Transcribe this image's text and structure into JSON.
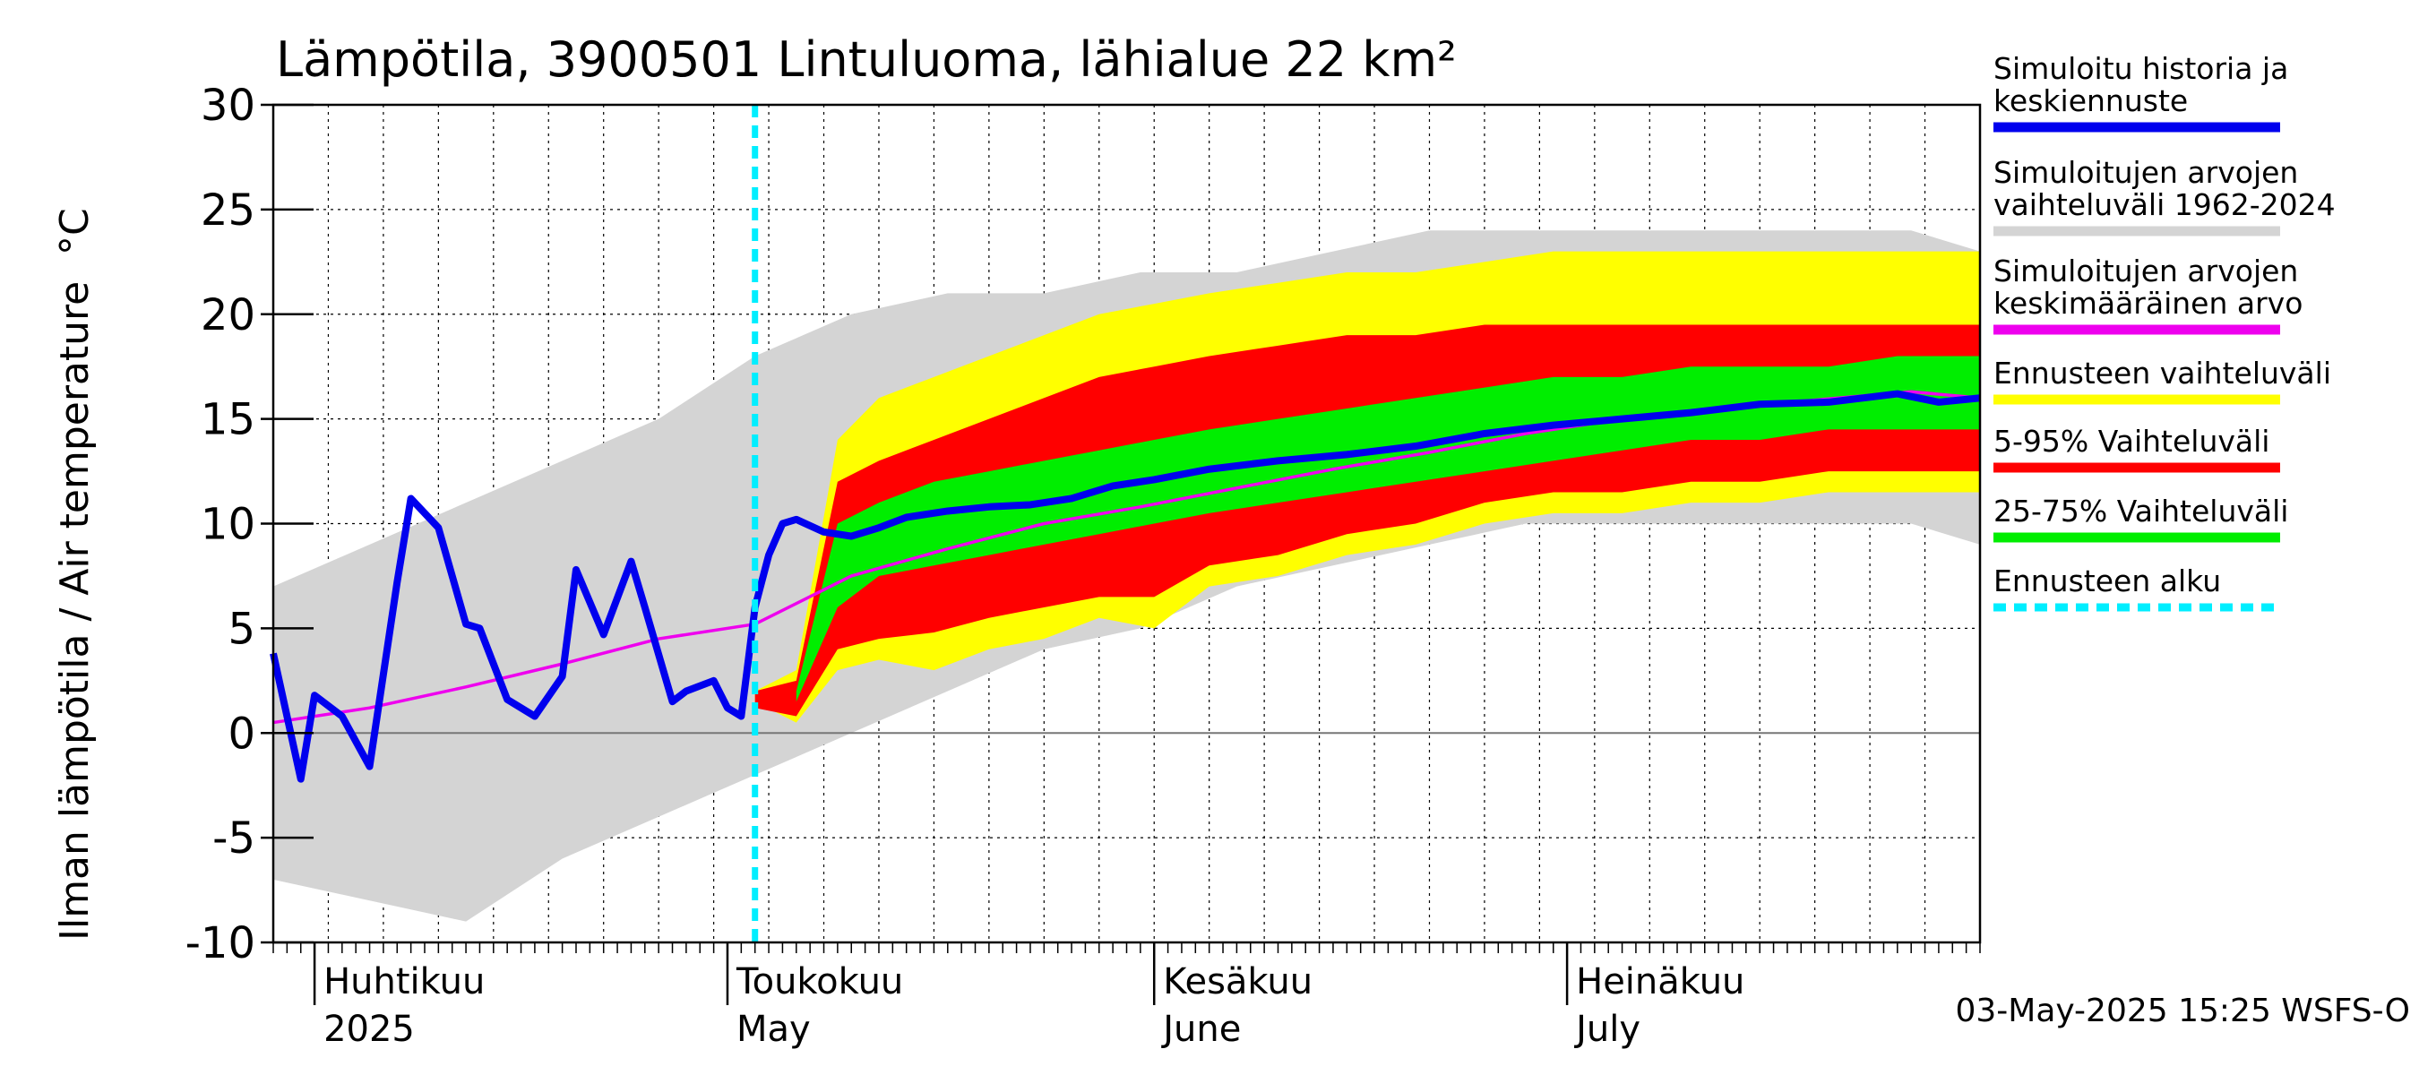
{
  "chart_data": {
    "type": "area",
    "title": "Lämpötila, 3900501 Lintuluoma, lähialue 22 km²",
    "ylabel": "Ilman lämpötila / Air temperature",
    "yunit": "°C",
    "ylim": [
      -10,
      30
    ],
    "yticks": [
      -10,
      -5,
      0,
      5,
      10,
      15,
      20,
      25,
      30
    ],
    "ytick_labels": [
      "-10",
      "-5",
      "0",
      "5",
      "10",
      "15",
      "20",
      "25",
      "30"
    ],
    "xlim": [
      "2025-03-29",
      "2025-07-31"
    ],
    "month_labels": [
      {
        "fi": "Huhtikuu",
        "en": "2025",
        "date": "2025-04-01"
      },
      {
        "fi": "Toukokuu",
        "en": "May",
        "date": "2025-05-01"
      },
      {
        "fi": "Kesäkuu",
        "en": "June",
        "date": "2025-06-01"
      },
      {
        "fi": "Heinäkuu",
        "en": "July",
        "date": "2025-07-01"
      }
    ],
    "forecast_start": "2025-05-03",
    "footer": "03-May-2025 15:25 WSFS-O",
    "grid": true,
    "legend_position": "right",
    "legend": [
      {
        "label": "Simuloitu historia ja keskiennuste",
        "color": "#0000ee",
        "style": "solid"
      },
      {
        "label": "Simuloitujen arvojen vaihteluväli 1962-2024",
        "color": "#d4d4d4",
        "style": "solid"
      },
      {
        "label": "Simuloitujen arvojen keskimääräinen arvo",
        "color": "#ee00ee",
        "style": "solid"
      },
      {
        "label": "Ennusteen vaihteluväli",
        "color": "#ffff00",
        "style": "solid"
      },
      {
        "label": "5-95% Vaihteluväli",
        "color": "#ff0000",
        "style": "solid"
      },
      {
        "label": "25-75% Vaihteluväli",
        "color": "#00ee00",
        "style": "solid"
      },
      {
        "label": "Ennusteen alku",
        "color": "#00eeff",
        "style": "dashed"
      }
    ],
    "series": [
      {
        "name": "Simuloitujen arvojen vaihteluväli 1962-2024",
        "kind": "band",
        "color": "#d4d4d4",
        "x": [
          "2025-03-29",
          "2025-04-05",
          "2025-04-12",
          "2025-04-19",
          "2025-04-26",
          "2025-05-03",
          "2025-05-10",
          "2025-05-17",
          "2025-05-24",
          "2025-05-31",
          "2025-06-07",
          "2025-06-14",
          "2025-06-21",
          "2025-06-28",
          "2025-07-05",
          "2025-07-12",
          "2025-07-19",
          "2025-07-26",
          "2025-07-31"
        ],
        "lower": [
          -7,
          -8,
          -9,
          -6,
          -4,
          -2,
          0,
          2,
          4,
          5,
          7,
          8,
          9,
          10,
          10,
          10,
          10,
          10,
          9
        ],
        "upper": [
          7,
          9,
          11,
          13,
          15,
          18,
          20,
          21,
          21,
          22,
          22,
          23,
          24,
          24,
          24,
          24,
          24,
          24,
          23
        ]
      },
      {
        "name": "Simuloitujen arvojen keskimääräinen arvo",
        "kind": "line",
        "color": "#ee00ee",
        "x": [
          "2025-03-29",
          "2025-04-05",
          "2025-04-12",
          "2025-04-19",
          "2025-04-26",
          "2025-05-03",
          "2025-05-10",
          "2025-05-17",
          "2025-05-24",
          "2025-05-31",
          "2025-06-07",
          "2025-06-14",
          "2025-06-21",
          "2025-06-28",
          "2025-07-05",
          "2025-07-12",
          "2025-07-19",
          "2025-07-26",
          "2025-07-31"
        ],
        "y": [
          0.5,
          1.2,
          2.2,
          3.3,
          4.5,
          5.2,
          7.5,
          8.8,
          10,
          10.8,
          11.7,
          12.6,
          13.4,
          14.3,
          15,
          15.5,
          15.9,
          16.3,
          16
        ]
      },
      {
        "name": "Ennusteen vaihteluväli",
        "kind": "band",
        "color": "#ffff00",
        "x": [
          "2025-05-03",
          "2025-05-06",
          "2025-05-09",
          "2025-05-12",
          "2025-05-16",
          "2025-05-20",
          "2025-05-24",
          "2025-05-28",
          "2025-06-01",
          "2025-06-05",
          "2025-06-10",
          "2025-06-15",
          "2025-06-20",
          "2025-06-25",
          "2025-06-30",
          "2025-07-05",
          "2025-07-10",
          "2025-07-15",
          "2025-07-20",
          "2025-07-25",
          "2025-07-31"
        ],
        "lower": [
          1.5,
          0.5,
          3,
          3.5,
          3,
          4,
          4.5,
          5.5,
          5,
          7,
          7.5,
          8.5,
          9,
          10,
          10.5,
          10.5,
          11,
          11,
          11.5,
          11.5,
          11.5
        ],
        "upper": [
          2,
          3,
          14,
          16,
          17,
          18,
          19,
          20,
          20.5,
          21,
          21.5,
          22,
          22,
          22.5,
          23,
          23,
          23,
          23,
          23,
          23,
          23
        ]
      },
      {
        "name": "5-95% Vaihteluväli",
        "kind": "band",
        "color": "#ff0000",
        "x": [
          "2025-05-03",
          "2025-05-06",
          "2025-05-09",
          "2025-05-12",
          "2025-05-16",
          "2025-05-20",
          "2025-05-24",
          "2025-05-28",
          "2025-06-01",
          "2025-06-05",
          "2025-06-10",
          "2025-06-15",
          "2025-06-20",
          "2025-06-25",
          "2025-06-30",
          "2025-07-05",
          "2025-07-10",
          "2025-07-15",
          "2025-07-20",
          "2025-07-25",
          "2025-07-31"
        ],
        "lower": [
          1.2,
          0.8,
          4,
          4.5,
          4.8,
          5.5,
          6,
          6.5,
          6.5,
          8,
          8.5,
          9.5,
          10,
          11,
          11.5,
          11.5,
          12,
          12,
          12.5,
          12.5,
          12.5
        ],
        "upper": [
          2,
          2.5,
          12,
          13,
          14,
          15,
          16,
          17,
          17.5,
          18,
          18.5,
          19,
          19,
          19.5,
          19.5,
          19.5,
          19.5,
          19.5,
          19.5,
          19.5,
          19.5
        ]
      },
      {
        "name": "25-75% Vaihteluväli",
        "kind": "band",
        "color": "#00ee00",
        "x": [
          "2025-05-06",
          "2025-05-09",
          "2025-05-12",
          "2025-05-16",
          "2025-05-20",
          "2025-05-24",
          "2025-05-28",
          "2025-06-01",
          "2025-06-05",
          "2025-06-10",
          "2025-06-15",
          "2025-06-20",
          "2025-06-25",
          "2025-06-30",
          "2025-07-05",
          "2025-07-10",
          "2025-07-15",
          "2025-07-20",
          "2025-07-25",
          "2025-07-31"
        ],
        "lower": [
          1.5,
          6,
          7.5,
          8,
          8.5,
          9,
          9.5,
          10,
          10.5,
          11,
          11.5,
          12,
          12.5,
          13,
          13.5,
          14,
          14,
          14.5,
          14.5,
          14.5
        ],
        "upper": [
          2,
          10,
          11,
          12,
          12.5,
          13,
          13.5,
          14,
          14.5,
          15,
          15.5,
          16,
          16.5,
          17,
          17,
          17.5,
          17.5,
          17.5,
          18,
          18
        ]
      },
      {
        "name": "Simuloitu historia ja keskiennuste",
        "kind": "line",
        "color": "#0000ee",
        "x": [
          "2025-03-29",
          "2025-03-31",
          "2025-04-01",
          "2025-04-03",
          "2025-04-05",
          "2025-04-07",
          "2025-04-08",
          "2025-04-10",
          "2025-04-12",
          "2025-04-13",
          "2025-04-15",
          "2025-04-17",
          "2025-04-19",
          "2025-04-20",
          "2025-04-22",
          "2025-04-24",
          "2025-04-25",
          "2025-04-27",
          "2025-04-28",
          "2025-04-30",
          "2025-05-01",
          "2025-05-02",
          "2025-05-03",
          "2025-05-04",
          "2025-05-05",
          "2025-05-06",
          "2025-05-08",
          "2025-05-10",
          "2025-05-12",
          "2025-05-14",
          "2025-05-17",
          "2025-05-20",
          "2025-05-23",
          "2025-05-26",
          "2025-05-29",
          "2025-06-01",
          "2025-06-05",
          "2025-06-10",
          "2025-06-15",
          "2025-06-20",
          "2025-06-25",
          "2025-06-30",
          "2025-07-05",
          "2025-07-10",
          "2025-07-15",
          "2025-07-20",
          "2025-07-25",
          "2025-07-28",
          "2025-07-31"
        ],
        "y": [
          3.8,
          -2.2,
          1.8,
          0.8,
          -1.6,
          7.2,
          11.2,
          9.8,
          5.2,
          5,
          1.6,
          0.8,
          2.7,
          7.8,
          4.7,
          8.2,
          6,
          1.5,
          2,
          2.5,
          1.2,
          0.8,
          6,
          8.5,
          10,
          10.2,
          9.6,
          9.4,
          9.8,
          10.3,
          10.6,
          10.8,
          10.9,
          11.2,
          11.8,
          12.1,
          12.6,
          13,
          13.3,
          13.7,
          14.3,
          14.7,
          15,
          15.3,
          15.7,
          15.8,
          16.2,
          15.8,
          16
        ]
      }
    ]
  }
}
